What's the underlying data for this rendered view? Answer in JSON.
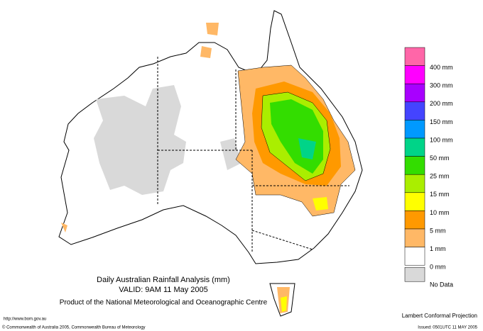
{
  "title": "Daily Australian Rainfall Analysis (mm)",
  "valid": "VALID: 9AM 11 May 2005",
  "product": "Product of the National Meteorological and Oceanographic Centre",
  "url": "http://www.bom.gov.au",
  "copyright": "© Commonwealth of Australia 2005, Commonwealth Bureau of Meteorology",
  "projection": "Lambert Conformal Projection",
  "issued": "Issued: 0501UTC 11 MAY 2005",
  "legend": {
    "colors": [
      "#ff66a8",
      "#ff00ff",
      "#a800ff",
      "#4444ff",
      "#0099ff",
      "#00d488",
      "#33dd00",
      "#aaee00",
      "#ffff00",
      "#ff9900",
      "#ffb866",
      "#ffffff",
      "#d9d9d9"
    ],
    "labels": [
      "400 mm",
      "300 mm",
      "200 mm",
      "150 mm",
      "100 mm",
      "50 mm",
      "25 mm",
      "15 mm",
      "10 mm",
      "5 mm",
      "1 mm",
      "0 mm",
      "No Data"
    ]
  }
}
